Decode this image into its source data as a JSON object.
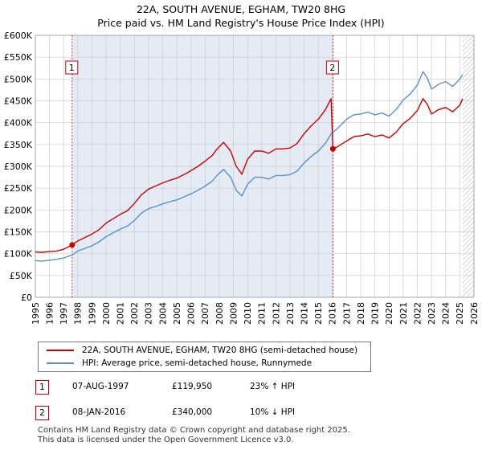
{
  "chart_data": {
    "type": "line",
    "title": "22A, SOUTH AVENUE, EGHAM, TW20 8HG",
    "subtitle": "Price paid vs. HM Land Registry's House Price Index (HPI)",
    "xlim": [
      1995,
      2026
    ],
    "ylim": [
      0,
      600000
    ],
    "x_ticks": [
      "1995",
      "1996",
      "1997",
      "1998",
      "1999",
      "2000",
      "2001",
      "2002",
      "2003",
      "2004",
      "2005",
      "2006",
      "2007",
      "2008",
      "2009",
      "2010",
      "2011",
      "2012",
      "2013",
      "2014",
      "2015",
      "2016",
      "2017",
      "2018",
      "2019",
      "2020",
      "2021",
      "2022",
      "2023",
      "2024",
      "2025",
      "2026"
    ],
    "y_ticks": [
      {
        "value": 0,
        "label": "£0"
      },
      {
        "value": 50000,
        "label": "£50K"
      },
      {
        "value": 100000,
        "label": "£100K"
      },
      {
        "value": 150000,
        "label": "£150K"
      },
      {
        "value": 200000,
        "label": "£200K"
      },
      {
        "value": 250000,
        "label": "£250K"
      },
      {
        "value": 300000,
        "label": "£300K"
      },
      {
        "value": 350000,
        "label": "£350K"
      },
      {
        "value": 400000,
        "label": "£400K"
      },
      {
        "value": 450000,
        "label": "£450K"
      },
      {
        "value": 500000,
        "label": "£500K"
      },
      {
        "value": 550000,
        "label": "£550K"
      },
      {
        "value": 600000,
        "label": "£600K"
      }
    ],
    "shaded_ranges": [
      {
        "from": 1997.6,
        "to": 2016.03
      }
    ],
    "hatched_from": 2025.2,
    "series": [
      {
        "name": "22A, SOUTH AVENUE, EGHAM, TW20 8HG (semi-detached house)",
        "color": "#cc0000",
        "x": [
          1995.0,
          1995.5,
          1996.0,
          1996.5,
          1997.0,
          1997.6,
          1998.0,
          1998.5,
          1999.0,
          1999.5,
          2000.0,
          2000.5,
          2001.0,
          2001.5,
          2002.0,
          2002.5,
          2003.0,
          2003.5,
          2004.0,
          2004.5,
          2005.0,
          2005.5,
          2006.0,
          2006.5,
          2007.0,
          2007.5,
          2007.8,
          2008.3,
          2008.8,
          2009.2,
          2009.6,
          2010.0,
          2010.5,
          2011.0,
          2011.5,
          2012.0,
          2012.5,
          2013.0,
          2013.5,
          2014.0,
          2014.5,
          2015.0,
          2015.5,
          2015.9,
          2016.03,
          2016.3,
          2016.7,
          2017.0,
          2017.5,
          2018.0,
          2018.5,
          2019.0,
          2019.5,
          2020.0,
          2020.5,
          2021.0,
          2021.5,
          2022.0,
          2022.4,
          2022.7,
          2023.0,
          2023.5,
          2024.0,
          2024.5,
          2025.0,
          2025.2
        ],
        "y": [
          104000,
          103000,
          105000,
          106000,
          110000,
          119950,
          129000,
          137000,
          145000,
          155000,
          170000,
          180000,
          190000,
          198000,
          215000,
          235000,
          248000,
          255000,
          262000,
          268000,
          273000,
          281000,
          290000,
          300000,
          312000,
          325000,
          338000,
          355000,
          335000,
          300000,
          282000,
          316000,
          335000,
          335000,
          330000,
          340000,
          340000,
          342000,
          352000,
          375000,
          393000,
          408000,
          430000,
          455000,
          340000,
          344000,
          352000,
          358000,
          368000,
          370000,
          374000,
          368000,
          372000,
          365000,
          378000,
          398000,
          410000,
          428000,
          455000,
          442000,
          420000,
          430000,
          435000,
          425000,
          440000,
          455000
        ]
      },
      {
        "name": "HPI: Average price, semi-detached house, Runnymede",
        "color": "#5b8fc9",
        "x": [
          1995.0,
          1995.5,
          1996.0,
          1996.5,
          1997.0,
          1997.6,
          1998.0,
          1998.5,
          1999.0,
          1999.5,
          2000.0,
          2000.5,
          2001.0,
          2001.5,
          2002.0,
          2002.5,
          2003.0,
          2003.5,
          2004.0,
          2004.5,
          2005.0,
          2005.5,
          2006.0,
          2006.5,
          2007.0,
          2007.5,
          2007.8,
          2008.3,
          2008.8,
          2009.2,
          2009.6,
          2010.0,
          2010.5,
          2011.0,
          2011.5,
          2012.0,
          2012.5,
          2013.0,
          2013.5,
          2014.0,
          2014.5,
          2015.0,
          2015.5,
          2015.9,
          2016.03,
          2016.3,
          2016.7,
          2017.0,
          2017.5,
          2018.0,
          2018.5,
          2019.0,
          2019.5,
          2020.0,
          2020.5,
          2021.0,
          2021.5,
          2022.0,
          2022.4,
          2022.7,
          2023.0,
          2023.5,
          2024.0,
          2024.5,
          2025.0,
          2025.2
        ],
        "y": [
          84000,
          83000,
          85000,
          87000,
          90000,
          97000,
          106000,
          112000,
          118000,
          127000,
          139000,
          148000,
          156000,
          163000,
          176000,
          193000,
          203000,
          208000,
          214000,
          219000,
          223000,
          230000,
          237000,
          245000,
          255000,
          266000,
          278000,
          293000,
          275000,
          245000,
          232000,
          259000,
          275000,
          275000,
          271000,
          279000,
          279000,
          281000,
          289000,
          308000,
          323000,
          335000,
          353000,
          374000,
          378000,
          385000,
          398000,
          408000,
          418000,
          420000,
          424000,
          418000,
          422000,
          415000,
          430000,
          452000,
          466000,
          486000,
          517000,
          502000,
          477000,
          488000,
          494000,
          483000,
          500000,
          510000
        ]
      }
    ],
    "annotations": [
      {
        "label": "1",
        "x": 1997.6,
        "y": 119950
      },
      {
        "label": "2",
        "x": 2016.03,
        "y": 340000
      }
    ]
  },
  "legend": {
    "series1": "22A, SOUTH AVENUE, EGHAM, TW20 8HG (semi-detached house)",
    "series2": "HPI: Average price, semi-detached house, Runnymede"
  },
  "transactions": [
    {
      "num": "1",
      "date": "07-AUG-1997",
      "price": "£119,950",
      "hpi": "23% ↑ HPI"
    },
    {
      "num": "2",
      "date": "08-JAN-2016",
      "price": "£340,000",
      "hpi": "10% ↓ HPI"
    }
  ],
  "footer": {
    "line1": "Contains HM Land Registry data © Crown copyright and database right 2025.",
    "line2": "This data is licensed under the Open Government Licence v3.0."
  },
  "colors": {
    "red": "#cc0000",
    "blue": "#5b8fc9",
    "shade": "#dde6f2",
    "grid": "#cccccc"
  }
}
